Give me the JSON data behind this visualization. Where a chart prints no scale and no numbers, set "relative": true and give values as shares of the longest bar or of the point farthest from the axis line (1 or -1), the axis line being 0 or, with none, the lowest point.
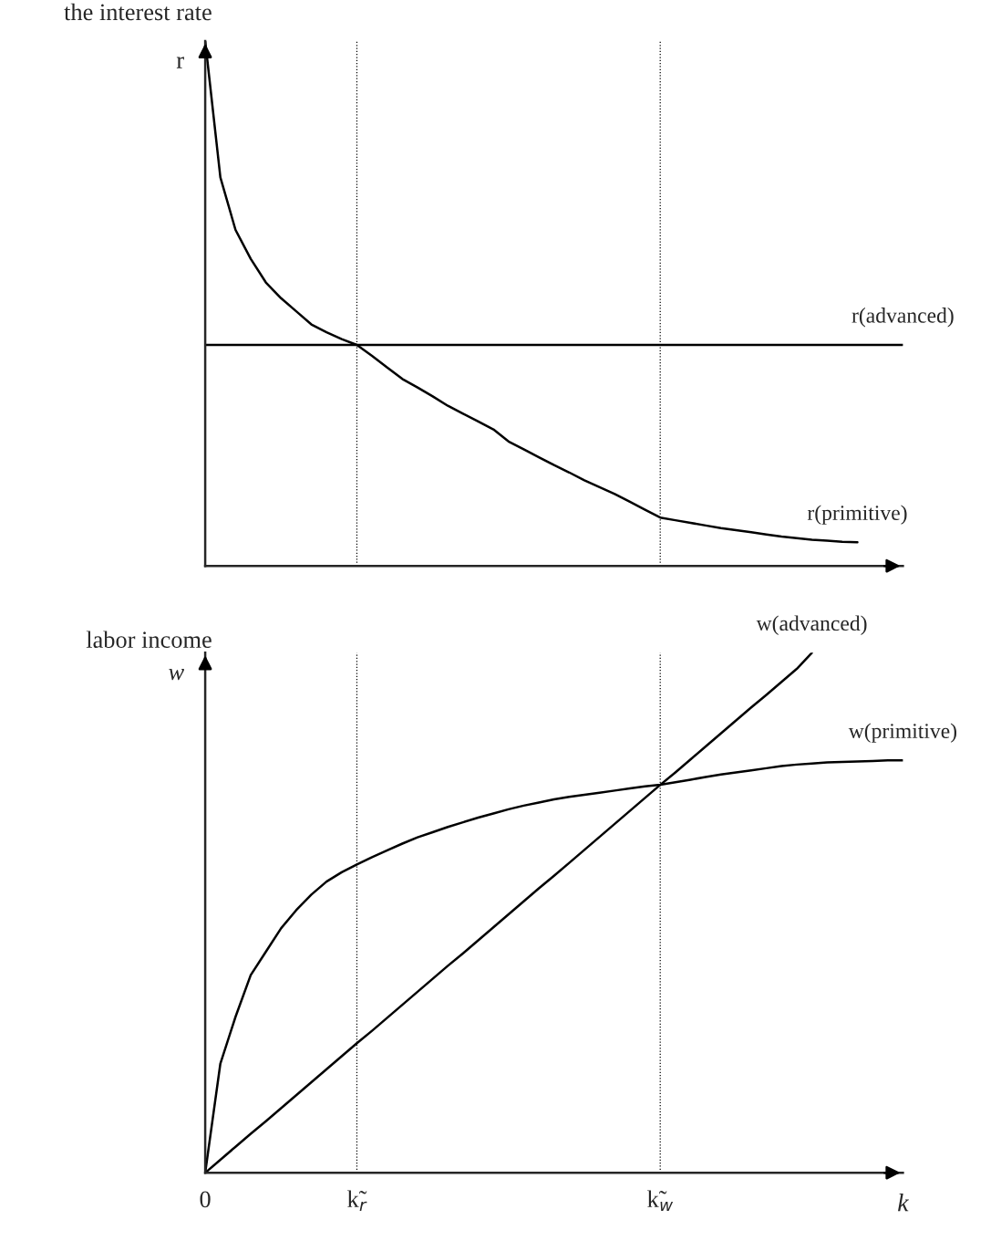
{
  "chart_data": [
    {
      "type": "line",
      "title": "the interest rate",
      "ylabel": "r",
      "relative": true,
      "marker": "none",
      "line_style": "solid",
      "tick_labels": false,
      "categories": [
        "0",
        null,
        null,
        null,
        null,
        null,
        null,
        null,
        null,
        null,
        "k̃$_{r}$",
        null,
        null,
        null,
        null,
        null,
        null,
        null,
        null,
        null,
        null,
        null,
        null,
        null,
        null,
        null,
        null,
        null,
        null,
        null,
        "k̃$_{w}$",
        null,
        null,
        null,
        null,
        null,
        null,
        null,
        null,
        null,
        null,
        null,
        null,
        null,
        null,
        null,
        null
      ],
      "series": [
        {
          "name": "r(advanced)",
          "color": "#000000",
          "values": [
            0.421,
            0.421,
            0.421,
            0.421,
            0.421,
            0.421,
            0.421,
            0.421,
            0.421,
            0.421,
            0.421,
            0.421,
            0.421,
            0.421,
            0.421,
            0.421,
            0.421,
            0.421,
            0.421,
            0.421,
            0.421,
            0.421,
            0.421,
            0.421,
            0.421,
            0.421,
            0.421,
            0.421,
            0.421,
            0.421,
            0.421,
            0.421,
            0.421,
            0.421,
            0.421,
            0.421,
            0.421,
            0.421,
            0.421,
            0.421,
            0.421,
            0.421,
            0.421,
            0.421,
            0.421,
            0.421,
            0.421
          ]
        },
        {
          "name": "r(primitive)",
          "color": "#000000",
          "values": [
            1.0,
            0.74,
            0.64,
            0.585,
            0.54,
            0.51,
            0.485,
            0.46,
            0.445,
            0.432,
            0.421,
            0.4,
            0.378,
            0.356,
            0.34,
            0.323,
            0.305,
            0.29,
            0.275,
            0.26,
            0.237,
            0.222,
            0.207,
            0.192,
            0.178,
            0.163,
            0.15,
            0.137,
            0.122,
            0.107,
            0.092,
            0.087,
            0.082,
            0.077,
            0.072,
            0.068,
            0.064,
            0.06,
            0.056,
            0.053,
            0.05,
            0.048,
            0.046,
            0.045,
            null,
            null,
            null
          ]
        }
      ],
      "ref_lines": [
        {
          "axis": "x",
          "value": "k̃$_{r}$",
          "line_style": "dotted",
          "color": "#000000"
        },
        {
          "axis": "x",
          "value": "k̃$_{w}$",
          "line_style": "dotted",
          "color": "#000000"
        }
      ]
    },
    {
      "type": "line",
      "title": "labor income",
      "ylabel": "w",
      "xlabel": "k",
      "relative": true,
      "marker": "none",
      "line_style": "solid",
      "categories": [
        "0",
        null,
        null,
        null,
        null,
        null,
        null,
        null,
        null,
        null,
        "k̃$_{r}$",
        null,
        null,
        null,
        null,
        null,
        null,
        null,
        null,
        null,
        null,
        null,
        null,
        null,
        null,
        null,
        null,
        null,
        null,
        null,
        "k̃$_{w}$",
        null,
        null,
        null,
        null,
        null,
        null,
        null,
        null,
        null,
        null,
        null,
        null,
        null,
        null,
        null,
        null
      ],
      "series": [
        {
          "name": "w(advanced)",
          "color": "#000000",
          "values": [
            0,
            0.025,
            0.05,
            0.075,
            0.099,
            0.124,
            0.149,
            0.174,
            0.199,
            0.224,
            0.249,
            0.273,
            0.298,
            0.323,
            0.348,
            0.373,
            0.398,
            0.422,
            0.447,
            0.472,
            0.497,
            0.522,
            0.547,
            0.571,
            0.596,
            0.621,
            0.646,
            0.671,
            0.696,
            0.721,
            0.746,
            0.77,
            0.795,
            0.82,
            0.845,
            0.87,
            0.895,
            0.919,
            0.944,
            0.969,
            1.0,
            null,
            null,
            null,
            null,
            null,
            null
          ]
        },
        {
          "name": "w(primitive)",
          "color": "#000000",
          "values": [
            0,
            0.21,
            0.3,
            0.38,
            0.425,
            0.47,
            0.505,
            0.535,
            0.56,
            0.578,
            0.593,
            0.607,
            0.62,
            0.633,
            0.645,
            0.655,
            0.665,
            0.674,
            0.683,
            0.691,
            0.699,
            0.706,
            0.712,
            0.718,
            0.723,
            0.727,
            0.731,
            0.735,
            0.739,
            0.743,
            0.746,
            0.751,
            0.756,
            0.761,
            0.766,
            0.77,
            0.774,
            0.778,
            0.782,
            0.785,
            0.787,
            0.789,
            0.79,
            0.791,
            0.792,
            0.793,
            0.793
          ]
        }
      ],
      "ref_lines": [
        {
          "axis": "x",
          "value": "k̃$_{r}$",
          "line_style": "dotted",
          "color": "#000000"
        },
        {
          "axis": "x",
          "value": "k̃$_{w}$",
          "line_style": "dotted",
          "color": "#000000"
        }
      ]
    }
  ]
}
